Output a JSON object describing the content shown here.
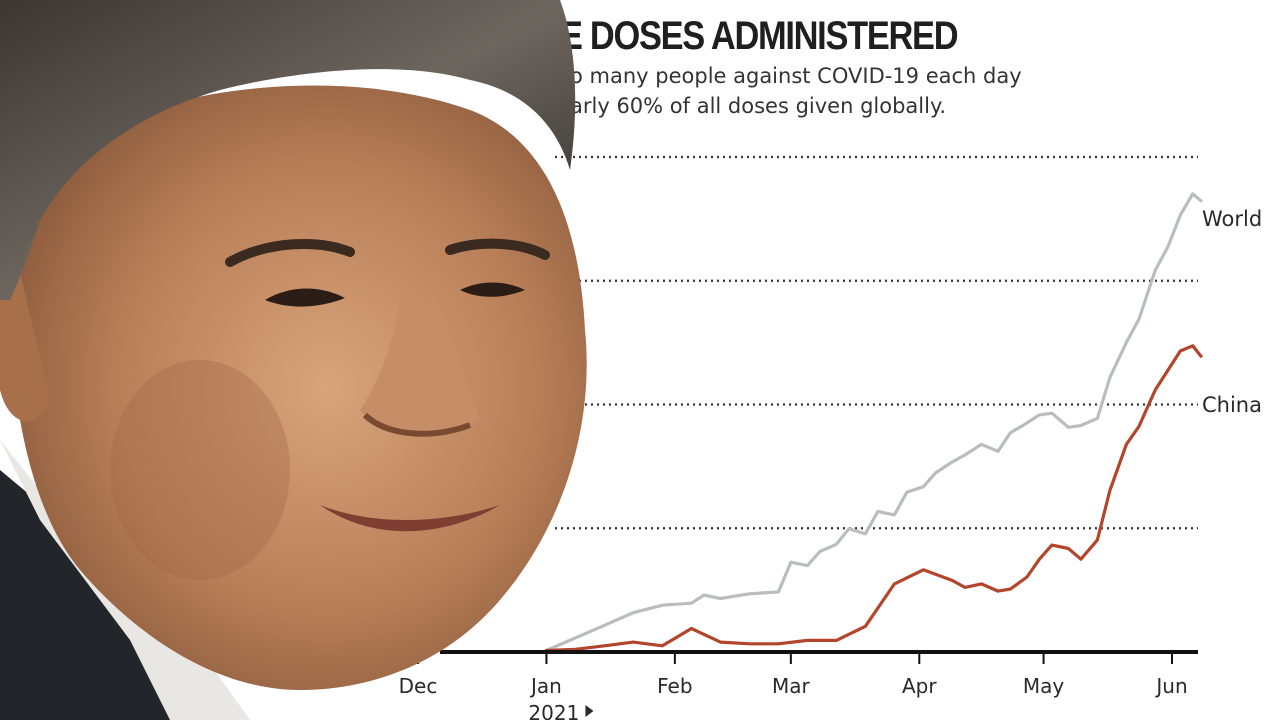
{
  "colors": {
    "world": "#b9bdbf",
    "china": "#b3452c",
    "axis": "#111111",
    "grid": "#333333"
  },
  "overlay": {
    "description": "cut-out portrait of a man in dark suit covering the left part of the chart",
    "icon": "person-portrait-icon"
  },
  "chart_data": {
    "type": "line",
    "title": "E DOSES ADMINISTERED",
    "subtitle": [
      "o many people against COVID-19 each day",
      "arly 60% of all doses given globally."
    ],
    "xlabel": "",
    "ylabel": "",
    "x_ticks": [
      "Dec",
      "Jan",
      "Feb",
      "Mar",
      "Apr",
      "May",
      "Jun"
    ],
    "year_label": "2021",
    "year_marker_icon": "triangle-right-icon",
    "grid": "horizontal-dotted",
    "legend": "end-of-line-labels",
    "series": [
      {
        "name": "World",
        "x": [
          "2021-01-01",
          "2021-01-08",
          "2021-01-15",
          "2021-01-22",
          "2021-01-29",
          "2021-02-05",
          "2021-02-08",
          "2021-02-12",
          "2021-02-19",
          "2021-02-26",
          "2021-03-01",
          "2021-03-05",
          "2021-03-08",
          "2021-03-12",
          "2021-03-15",
          "2021-03-19",
          "2021-03-22",
          "2021-03-26",
          "2021-03-29",
          "2021-04-02",
          "2021-04-05",
          "2021-04-09",
          "2021-04-12",
          "2021-04-16",
          "2021-04-20",
          "2021-04-23",
          "2021-04-26",
          "2021-04-30",
          "2021-05-03",
          "2021-05-07",
          "2021-05-10",
          "2021-05-14",
          "2021-05-17",
          "2021-05-21",
          "2021-05-24",
          "2021-05-28",
          "2021-05-31",
          "2021-06-03",
          "2021-06-06",
          "2021-06-08"
        ],
        "values": [
          0.6,
          5.7,
          10.8,
          15.9,
          18.9,
          19.7,
          23,
          21.6,
          23.5,
          24.3,
          36.3,
          34.9,
          40.6,
          43.5,
          49.8,
          47.7,
          56.8,
          55.4,
          64.6,
          66.8,
          72.5,
          76.8,
          79.6,
          83.9,
          81.1,
          88.6,
          91.5,
          95.8,
          96.5,
          90.8,
          91.5,
          94.4,
          110.9,
          125.1,
          134.4,
          154.4,
          163.7,
          176.5,
          185.1,
          182.3
        ]
      },
      {
        "name": "China",
        "x": [
          "2021-01-01",
          "2021-01-08",
          "2021-01-15",
          "2021-01-22",
          "2021-01-29",
          "2021-02-05",
          "2021-02-12",
          "2021-02-19",
          "2021-02-26",
          "2021-03-05",
          "2021-03-12",
          "2021-03-19",
          "2021-03-26",
          "2021-04-02",
          "2021-04-09",
          "2021-04-12",
          "2021-04-16",
          "2021-04-20",
          "2021-04-23",
          "2021-04-27",
          "2021-04-30",
          "2021-05-03",
          "2021-05-07",
          "2021-05-10",
          "2021-05-14",
          "2021-05-17",
          "2021-05-21",
          "2021-05-24",
          "2021-05-28",
          "2021-05-31",
          "2021-06-03",
          "2021-06-06",
          "2021-06-08"
        ],
        "values": [
          0.6,
          1.1,
          2.5,
          4.0,
          2.5,
          9.5,
          4.0,
          3.3,
          3.3,
          4.7,
          4.7,
          10.4,
          27.5,
          33.2,
          28.9,
          26.1,
          27.5,
          24.6,
          25.4,
          30.3,
          37.5,
          43.2,
          41.8,
          37.5,
          45.3,
          65.3,
          83.9,
          91.1,
          106.0,
          113.8,
          121.6,
          123.7,
          119.5
        ]
      }
    ]
  }
}
